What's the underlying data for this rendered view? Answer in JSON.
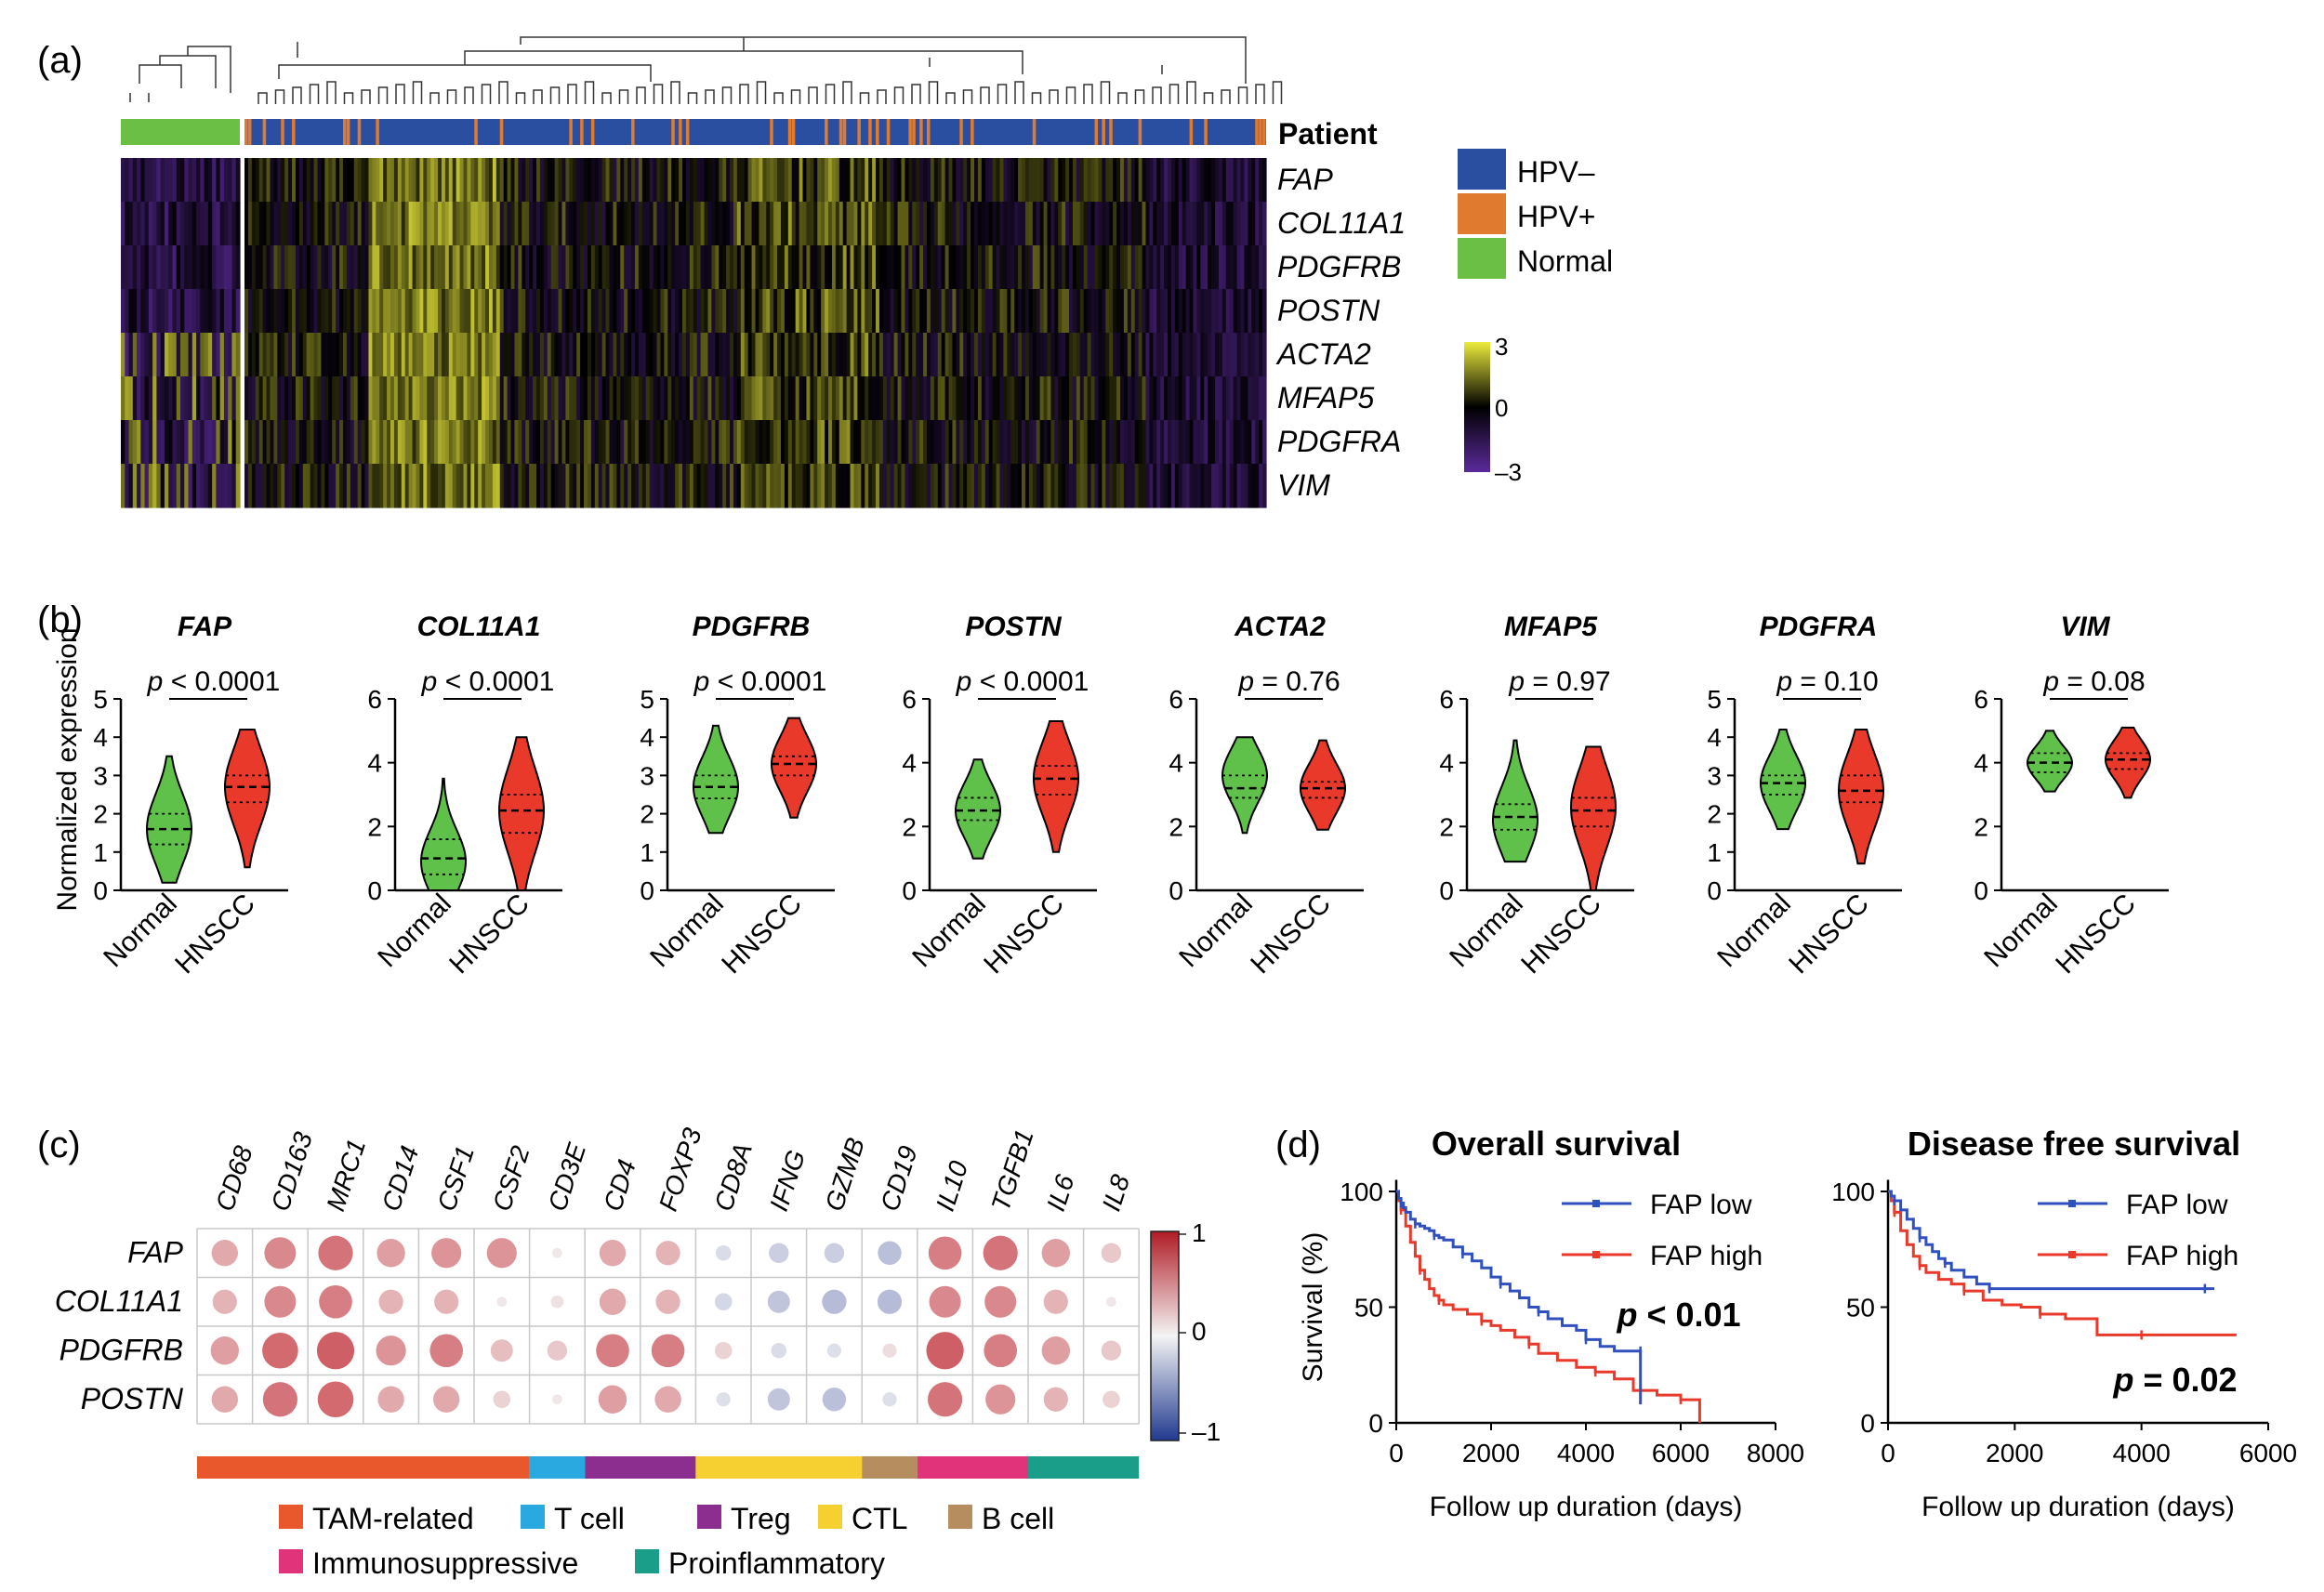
{
  "colors": {
    "hpv_neg": "#2a4fa0",
    "hpv_pos": "#e07a2f",
    "normal": "#6bbf45",
    "heat_low": "#5b2a9c",
    "heat_mid": "#000000",
    "heat_high": "#ecec3c",
    "violin_normal": "#5fc04a",
    "violin_hnscc": "#e8392b",
    "km_low": "#3050c0",
    "km_high": "#e8392b"
  },
  "panel_a": {
    "label": "(a)",
    "annotation_title": "Patient",
    "genes": [
      "FAP",
      "COL11A1",
      "PDGFRB",
      "POSTN",
      "ACTA2",
      "MFAP5",
      "PDGFRA",
      "VIM"
    ],
    "legend": [
      {
        "label": "HPV–",
        "color": "#2a4fa0"
      },
      {
        "label": "HPV+",
        "color": "#e07a2f"
      },
      {
        "label": "Normal",
        "color": "#6bbf45"
      }
    ],
    "scale_labels": [
      "3",
      "0",
      "–3"
    ]
  },
  "panel_b": {
    "label": "(b)",
    "ylabel": "Normalized expression",
    "groups": [
      "Normal",
      "HNSCC"
    ],
    "genes": [
      {
        "gene": "FAP",
        "p_prefix": "p",
        "p_text": " < 0.0001",
        "ymax": 5,
        "ticks": [
          "0",
          "1",
          "2",
          "3",
          "4",
          "5"
        ],
        "normal": {
          "lo": 0.2,
          "hi": 3.5,
          "mode": 1.6,
          "q1": 1.2,
          "med": 1.6,
          "q3": 2.0
        },
        "hnscc": {
          "lo": 0.6,
          "hi": 4.2,
          "mode": 2.7,
          "q1": 2.3,
          "med": 2.7,
          "q3": 3.0
        }
      },
      {
        "gene": "COL11A1",
        "p_prefix": "p",
        "p_text": " < 0.0001",
        "ymax": 6,
        "ticks": [
          "0",
          "2",
          "4",
          "6"
        ],
        "normal": {
          "lo": 0.0,
          "hi": 3.5,
          "mode": 0.9,
          "q1": 0.5,
          "med": 1.0,
          "q3": 1.6
        },
        "hnscc": {
          "lo": 0.0,
          "hi": 4.8,
          "mode": 2.5,
          "q1": 1.8,
          "med": 2.5,
          "q3": 3.0
        }
      },
      {
        "gene": "PDGFRB",
        "p_prefix": "p",
        "p_text": " < 0.0001",
        "ymax": 5,
        "ticks": [
          "0",
          "1",
          "2",
          "3",
          "4",
          "5"
        ],
        "normal": {
          "lo": 1.5,
          "hi": 4.3,
          "mode": 2.7,
          "q1": 2.4,
          "med": 2.7,
          "q3": 3.0
        },
        "hnscc": {
          "lo": 1.9,
          "hi": 4.5,
          "mode": 3.3,
          "q1": 3.0,
          "med": 3.3,
          "q3": 3.5
        }
      },
      {
        "gene": "POSTN",
        "p_prefix": "p",
        "p_text": " < 0.0001",
        "ymax": 6,
        "ticks": [
          "0",
          "2",
          "4",
          "6"
        ],
        "normal": {
          "lo": 1.0,
          "hi": 4.1,
          "mode": 2.5,
          "q1": 2.2,
          "med": 2.5,
          "q3": 2.9
        },
        "hnscc": {
          "lo": 1.2,
          "hi": 5.3,
          "mode": 3.5,
          "q1": 3.0,
          "med": 3.5,
          "q3": 3.9
        }
      },
      {
        "gene": "ACTA2",
        "p_prefix": "p",
        "p_text": " = 0.76",
        "ymax": 6,
        "ticks": [
          "0",
          "2",
          "4",
          "6"
        ],
        "normal": {
          "lo": 1.8,
          "hi": 4.8,
          "mode": 3.6,
          "q1": 2.9,
          "med": 3.2,
          "q3": 3.6
        },
        "hnscc": {
          "lo": 1.9,
          "hi": 4.7,
          "mode": 3.2,
          "q1": 2.9,
          "med": 3.2,
          "q3": 3.4
        }
      },
      {
        "gene": "MFAP5",
        "p_prefix": "p",
        "p_text": " = 0.97",
        "ymax": 6,
        "ticks": [
          "0",
          "2",
          "4",
          "6"
        ],
        "normal": {
          "lo": 0.9,
          "hi": 4.7,
          "mode": 2.2,
          "q1": 1.9,
          "med": 2.3,
          "q3": 2.7
        },
        "hnscc": {
          "lo": 0.0,
          "hi": 4.5,
          "mode": 2.6,
          "q1": 2.0,
          "med": 2.5,
          "q3": 2.9
        }
      },
      {
        "gene": "PDGFRA",
        "p_prefix": "p",
        "p_text": " = 0.10",
        "ymax": 5,
        "ticks": [
          "0",
          "1",
          "2",
          "3",
          "4",
          "5"
        ],
        "normal": {
          "lo": 1.6,
          "hi": 4.2,
          "mode": 2.8,
          "q1": 2.5,
          "med": 2.8,
          "q3": 3.0
        },
        "hnscc": {
          "lo": 0.7,
          "hi": 4.2,
          "mode": 2.6,
          "q1": 2.3,
          "med": 2.6,
          "q3": 3.0
        }
      },
      {
        "gene": "VIM",
        "p_prefix": "p",
        "p_text": " = 0.08",
        "ymax": 6,
        "ticks": [
          "0",
          "2",
          "4",
          "6"
        ],
        "normal": {
          "lo": 3.1,
          "hi": 5.0,
          "mode": 4.0,
          "q1": 3.7,
          "med": 4.0,
          "q3": 4.3
        },
        "hnscc": {
          "lo": 2.9,
          "hi": 5.1,
          "mode": 4.1,
          "q1": 3.8,
          "med": 4.1,
          "q3": 4.3
        }
      }
    ]
  },
  "chart_data": [
    {
      "type": "heatmap",
      "panel": "a",
      "rows": [
        "FAP",
        "COL11A1",
        "PDGFRB",
        "POSTN",
        "ACTA2",
        "MFAP5",
        "PDGFRA",
        "VIM"
      ],
      "column_annotation": "Patient",
      "groups": [
        "HPV–",
        "HPV+",
        "Normal"
      ],
      "color_range": [
        -3,
        3
      ]
    },
    {
      "type": "violin",
      "panel": "b",
      "ylabel": "Normalized expression",
      "categories": [
        "Normal",
        "HNSCC"
      ]
    },
    {
      "type": "heatmap",
      "panel": "c",
      "subtype": "correlation-dot",
      "columns": [
        "CD68",
        "CD163",
        "MRC1",
        "CD14",
        "CSF1",
        "CSF2",
        "CD3E",
        "CD4",
        "FOXP3",
        "CD8A",
        "IFNG",
        "GZMB",
        "CD19",
        "IL10",
        "TGFB1",
        "IL6",
        "IL8"
      ],
      "rows": [
        "FAP",
        "COL11A1",
        "PDGFRB",
        "POSTN"
      ],
      "values": [
        [
          0.35,
          0.5,
          0.6,
          0.4,
          0.45,
          0.45,
          0.05,
          0.35,
          0.3,
          -0.12,
          -0.2,
          -0.2,
          -0.28,
          0.55,
          0.6,
          0.4,
          0.2
        ],
        [
          0.3,
          0.5,
          0.55,
          0.3,
          0.3,
          0.05,
          0.08,
          0.35,
          0.3,
          -0.15,
          -0.25,
          -0.3,
          -0.3,
          0.5,
          0.5,
          0.3,
          0.05
        ],
        [
          0.4,
          0.65,
          0.7,
          0.45,
          0.55,
          0.25,
          0.2,
          0.55,
          0.55,
          0.15,
          -0.12,
          -0.1,
          0.1,
          0.7,
          0.55,
          0.4,
          0.2
        ],
        [
          0.35,
          0.6,
          0.65,
          0.35,
          0.35,
          0.15,
          0.05,
          0.4,
          0.35,
          -0.1,
          -0.25,
          -0.28,
          -0.1,
          0.6,
          0.45,
          0.3,
          0.15
        ]
      ],
      "color_range": [
        -1,
        1
      ],
      "colorbar_ticks": [
        "1",
        "0",
        "–1"
      ],
      "groups": [
        {
          "name": "TAM-related",
          "color": "#e9572c",
          "span": [
            0,
            5
          ]
        },
        {
          "name": "T cell",
          "color": "#2aa8e0",
          "span": [
            6,
            6
          ]
        },
        {
          "name": "Treg",
          "color": "#8b2e8f",
          "span": [
            7,
            8
          ]
        },
        {
          "name": "CTL",
          "color": "#f6d031",
          "span": [
            9,
            11
          ]
        },
        {
          "name": "B cell",
          "color": "#b58d5e",
          "span": [
            12,
            12
          ]
        },
        {
          "name": "Immunosuppressive",
          "color": "#e0337a",
          "span": [
            13,
            14
          ]
        },
        {
          "name": "Proinflammatory",
          "color": "#1a9e8a",
          "span": [
            15,
            16
          ]
        }
      ]
    },
    {
      "type": "line",
      "panel": "d-left",
      "title": "Overall survival",
      "xlabel": "Follow up duration (days)",
      "ylabel": "Survival (%)",
      "xlim": [
        0,
        8000
      ],
      "ylim": [
        0,
        100
      ],
      "xticks": [
        "0",
        "2000",
        "4000",
        "6000",
        "8000"
      ],
      "yticks": [
        "0",
        "50",
        "100"
      ],
      "p_prefix": "p",
      "p_text": " < 0.01",
      "series": [
        {
          "name": "FAP low",
          "x": [
            0,
            50,
            100,
            150,
            200,
            300,
            400,
            500,
            600,
            700,
            800,
            900,
            1000,
            1200,
            1400,
            1600,
            1800,
            2000,
            2200,
            2400,
            2600,
            2800,
            3000,
            3200,
            3500,
            3800,
            4000,
            4300,
            4600,
            5000,
            5150,
            5150
          ],
          "y": [
            100,
            97,
            95,
            93,
            91,
            88,
            86,
            85,
            84,
            83,
            81,
            80,
            79,
            76,
            73,
            70,
            67,
            63,
            60,
            57,
            54,
            50,
            48,
            45,
            42,
            40,
            36,
            33,
            31,
            31,
            31,
            8
          ]
        },
        {
          "name": "FAP high",
          "x": [
            0,
            50,
            100,
            200,
            300,
            400,
            500,
            600,
            700,
            800,
            900,
            1000,
            1200,
            1500,
            1800,
            2000,
            2200,
            2500,
            2800,
            3000,
            3400,
            3800,
            4200,
            4600,
            5000,
            5500,
            6000,
            6400,
            6400
          ],
          "y": [
            100,
            96,
            92,
            85,
            78,
            72,
            66,
            62,
            58,
            55,
            53,
            51,
            49,
            47,
            44,
            42,
            40,
            37,
            34,
            30,
            27,
            24,
            22,
            19,
            14,
            12,
            10,
            10,
            0
          ]
        }
      ]
    },
    {
      "type": "line",
      "panel": "d-right",
      "title": "Disease free survival",
      "xlabel": "Follow up duration (days)",
      "ylabel": "",
      "xlim": [
        0,
        6000
      ],
      "ylim": [
        0,
        100
      ],
      "xticks": [
        "0",
        "2000",
        "4000",
        "6000"
      ],
      "yticks": [
        "0",
        "50",
        "100"
      ],
      "p_prefix": "p",
      "p_text": " = 0.02",
      "series": [
        {
          "name": "FAP low",
          "x": [
            0,
            50,
            100,
            200,
            300,
            400,
            500,
            600,
            700,
            800,
            900,
            1000,
            1200,
            1400,
            1600,
            2000,
            3000,
            4000,
            5000,
            5150
          ],
          "y": [
            100,
            98,
            96,
            92,
            88,
            84,
            80,
            77,
            74,
            71,
            69,
            66,
            63,
            60,
            58,
            58,
            58,
            58,
            58,
            58
          ]
        },
        {
          "name": "FAP high",
          "x": [
            0,
            50,
            100,
            200,
            300,
            400,
            500,
            600,
            800,
            1000,
            1200,
            1500,
            1800,
            2100,
            2400,
            2800,
            3300,
            3300,
            4000,
            5000,
            5500
          ],
          "y": [
            100,
            96,
            91,
            83,
            77,
            72,
            68,
            65,
            62,
            60,
            57,
            53,
            51,
            50,
            47,
            45,
            43,
            38,
            38,
            38,
            38
          ]
        }
      ]
    }
  ]
}
